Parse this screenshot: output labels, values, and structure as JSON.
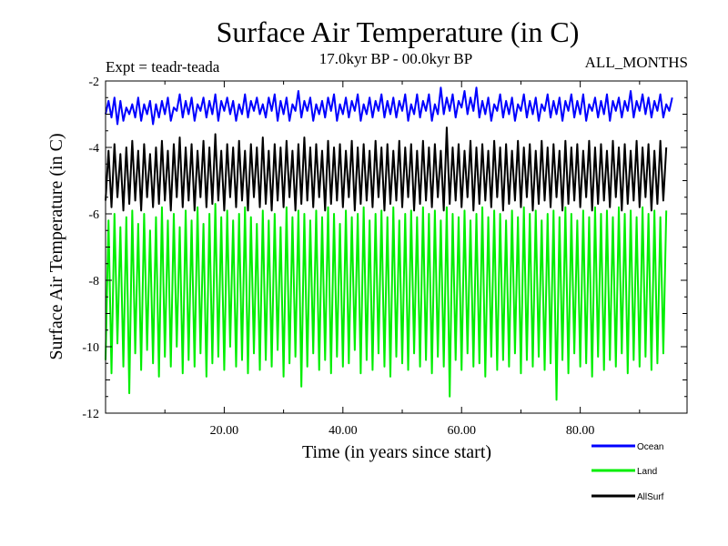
{
  "chart_data": {
    "type": "line",
    "title": "Surface Air Temperature (in C)",
    "subtitle_left": "Expt = teadr-teada",
    "subtitle_center": "17.0kyr BP - 00.0kyr BP",
    "subtitle_right": "ALL_MONTHS",
    "xlabel": "Time (in years since start)",
    "ylabel": "Surface Air Temperature (in C)",
    "xlim": [
      0,
      98
    ],
    "ylim": [
      -12,
      -2
    ],
    "x_ticks": [
      20,
      40,
      60,
      80
    ],
    "x_tick_labels": [
      "20.00",
      "40.00",
      "60.00",
      "80.00"
    ],
    "y_ticks": [
      -12,
      -10,
      -8,
      -6,
      -4,
      -2
    ],
    "y_tick_labels": [
      "-12",
      "-10",
      "-8",
      "-6",
      "-4",
      "-2"
    ],
    "samples_per_year": 2,
    "series": [
      {
        "name": "Ocean",
        "color": "#0000ff",
        "values": [
          -3.0,
          -2.6,
          -3.1,
          -2.5,
          -3.3,
          -2.6,
          -3.2,
          -2.8,
          -3.0,
          -2.7,
          -3.1,
          -2.5,
          -3.2,
          -2.7,
          -3.0,
          -2.6,
          -3.3,
          -2.7,
          -3.1,
          -2.6,
          -3.0,
          -2.5,
          -3.2,
          -2.8,
          -2.9,
          -2.4,
          -3.1,
          -2.6,
          -3.0,
          -2.5,
          -3.2,
          -2.7,
          -2.9,
          -2.5,
          -3.1,
          -2.6,
          -3.0,
          -2.4,
          -3.2,
          -2.6,
          -2.9,
          -2.5,
          -3.0,
          -2.6,
          -3.2,
          -2.7,
          -3.0,
          -2.4,
          -3.1,
          -2.6,
          -2.9,
          -2.5,
          -3.0,
          -2.7,
          -3.1,
          -2.5,
          -2.9,
          -2.4,
          -3.2,
          -2.6,
          -3.0,
          -2.5,
          -3.2,
          -2.7,
          -2.9,
          -2.3,
          -3.1,
          -2.6,
          -2.9,
          -2.5,
          -3.2,
          -2.7,
          -3.0,
          -2.6,
          -3.1,
          -2.5,
          -2.9,
          -2.4,
          -3.2,
          -2.7,
          -3.0,
          -2.5,
          -3.1,
          -2.6,
          -2.9,
          -2.4,
          -3.2,
          -2.7,
          -3.0,
          -2.5,
          -3.1,
          -2.6,
          -2.9,
          -2.4,
          -3.1,
          -2.6,
          -3.0,
          -2.5,
          -3.1,
          -2.6,
          -2.9,
          -2.4,
          -3.2,
          -2.7,
          -3.0,
          -2.4,
          -3.1,
          -2.6,
          -2.9,
          -2.4,
          -3.2,
          -2.7,
          -3.0,
          -2.2,
          -3.0,
          -2.5,
          -2.9,
          -2.4,
          -3.1,
          -2.6,
          -2.8,
          -2.3,
          -3.0,
          -2.5,
          -2.9,
          -2.2,
          -3.1,
          -2.6,
          -3.0,
          -2.5,
          -3.2,
          -2.7,
          -2.9,
          -2.4,
          -3.1,
          -2.6,
          -3.0,
          -2.5,
          -3.2,
          -2.7,
          -2.9,
          -2.4,
          -3.1,
          -2.6,
          -3.0,
          -2.5,
          -3.2,
          -2.7,
          -2.9,
          -2.4,
          -3.1,
          -2.6,
          -3.0,
          -2.5,
          -3.2,
          -2.6,
          -2.9,
          -2.4,
          -3.1,
          -2.6,
          -3.0,
          -2.4,
          -3.2,
          -2.7,
          -2.9,
          -2.5,
          -3.1,
          -2.6,
          -3.0,
          -2.4,
          -3.2,
          -2.6,
          -2.9,
          -2.5,
          -3.1,
          -2.6,
          -2.9,
          -2.3,
          -3.1,
          -2.6,
          -2.9,
          -2.4,
          -3.0,
          -2.5,
          -3.1,
          -2.6,
          -2.9,
          -2.4,
          -3.1,
          -2.7,
          -2.9,
          -2.5
        ]
      },
      {
        "name": "Land",
        "color": "#00ee00",
        "values": [
          -10.4,
          -6.2,
          -10.8,
          -6.0,
          -9.9,
          -6.4,
          -10.6,
          -6.1,
          -11.4,
          -5.9,
          -10.2,
          -6.3,
          -10.7,
          -6.0,
          -10.1,
          -6.5,
          -10.5,
          -6.1,
          -10.9,
          -5.8,
          -10.3,
          -6.2,
          -10.6,
          -6.0,
          -10.0,
          -6.4,
          -10.8,
          -5.9,
          -10.4,
          -6.2,
          -10.6,
          -5.8,
          -10.2,
          -6.3,
          -10.9,
          -6.0,
          -10.5,
          -5.7,
          -10.3,
          -6.1,
          -10.7,
          -5.9,
          -10.0,
          -6.2,
          -10.6,
          -6.0,
          -10.4,
          -5.8,
          -10.8,
          -6.1,
          -10.2,
          -6.3,
          -10.7,
          -5.9,
          -10.4,
          -6.2,
          -10.6,
          -6.0,
          -10.1,
          -6.4,
          -10.9,
          -5.8,
          -10.5,
          -6.1,
          -10.3,
          -5.9,
          -11.2,
          -6.0,
          -10.6,
          -6.2,
          -10.2,
          -5.9,
          -10.7,
          -6.1,
          -10.4,
          -5.8,
          -10.8,
          -6.0,
          -10.3,
          -6.3,
          -10.6,
          -5.9,
          -10.5,
          -6.1,
          -10.1,
          -6.0,
          -10.8,
          -5.8,
          -10.4,
          -6.2,
          -10.7,
          -6.0,
          -10.2,
          -5.9,
          -10.6,
          -6.1,
          -10.9,
          -5.8,
          -10.3,
          -6.2,
          -10.5,
          -6.0,
          -10.7,
          -5.9,
          -10.2,
          -6.1,
          -10.6,
          -5.8,
          -10.4,
          -6.0,
          -10.8,
          -5.9,
          -10.3,
          -6.2,
          -10.6,
          -5.8,
          -11.5,
          -6.0,
          -10.4,
          -6.1,
          -10.7,
          -5.9,
          -10.2,
          -6.2,
          -10.6,
          -6.0,
          -10.5,
          -5.8,
          -10.9,
          -6.1,
          -10.3,
          -5.9,
          -10.7,
          -6.0,
          -10.4,
          -6.2,
          -10.6,
          -5.9,
          -10.2,
          -6.1,
          -10.8,
          -5.8,
          -10.4,
          -6.0,
          -10.6,
          -5.9,
          -10.3,
          -6.2,
          -10.7,
          -6.0,
          -10.5,
          -5.9,
          -11.6,
          -6.1,
          -10.4,
          -5.8,
          -10.8,
          -6.0,
          -10.2,
          -6.2,
          -10.6,
          -5.9,
          -10.5,
          -6.1,
          -10.9,
          -5.8,
          -10.3,
          -6.0,
          -10.7,
          -5.9,
          -10.4,
          -6.1,
          -10.6,
          -5.8,
          -10.2,
          -6.0,
          -10.8,
          -5.9,
          -10.4,
          -6.1,
          -10.6,
          -5.8,
          -10.3,
          -6.0,
          -10.7,
          -5.9,
          -10.5,
          -6.1,
          -10.2,
          -5.9
        ]
      },
      {
        "name": "AllSurf",
        "color": "#000000",
        "values": [
          -5.6,
          -4.1,
          -5.8,
          -3.9,
          -5.5,
          -4.2,
          -5.9,
          -4.0,
          -5.7,
          -3.8,
          -5.6,
          -4.1,
          -5.9,
          -3.9,
          -5.5,
          -4.2,
          -5.8,
          -4.0,
          -5.7,
          -3.8,
          -5.6,
          -4.1,
          -5.9,
          -3.9,
          -5.5,
          -3.7,
          -5.8,
          -4.0,
          -5.6,
          -3.9,
          -5.9,
          -4.1,
          -5.5,
          -3.8,
          -5.8,
          -4.0,
          -5.7,
          -3.6,
          -5.6,
          -4.1,
          -5.9,
          -3.9,
          -5.5,
          -4.0,
          -5.8,
          -3.8,
          -5.6,
          -4.1,
          -5.9,
          -3.9,
          -5.5,
          -4.0,
          -5.8,
          -3.7,
          -5.7,
          -4.1,
          -5.9,
          -3.9,
          -5.6,
          -4.0,
          -5.8,
          -3.8,
          -5.5,
          -4.1,
          -5.9,
          -3.9,
          -5.7,
          -3.7,
          -5.6,
          -4.0,
          -5.8,
          -3.9,
          -5.5,
          -4.1,
          -5.9,
          -3.8,
          -5.7,
          -4.0,
          -5.6,
          -3.9,
          -5.8,
          -4.1,
          -5.5,
          -3.8,
          -5.9,
          -4.0,
          -5.7,
          -3.9,
          -5.6,
          -4.1,
          -5.8,
          -3.8,
          -5.5,
          -4.0,
          -5.9,
          -3.9,
          -5.7,
          -4.1,
          -5.6,
          -3.8,
          -5.8,
          -4.0,
          -5.5,
          -3.9,
          -5.9,
          -4.1,
          -5.7,
          -3.8,
          -5.6,
          -4.0,
          -5.8,
          -3.9,
          -5.5,
          -4.1,
          -5.9,
          -3.4,
          -5.7,
          -4.0,
          -5.6,
          -3.9,
          -5.8,
          -4.1,
          -5.5,
          -3.8,
          -5.9,
          -4.0,
          -5.7,
          -3.9,
          -5.6,
          -4.1,
          -5.8,
          -3.8,
          -5.5,
          -4.0,
          -5.9,
          -3.9,
          -5.7,
          -4.1,
          -5.6,
          -3.8,
          -5.8,
          -4.0,
          -5.5,
          -3.9,
          -5.9,
          -4.1,
          -5.7,
          -3.8,
          -5.6,
          -4.0,
          -5.8,
          -3.9,
          -5.5,
          -4.1,
          -5.9,
          -3.8,
          -5.7,
          -4.0,
          -5.6,
          -3.9,
          -5.8,
          -4.1,
          -5.5,
          -3.8,
          -5.9,
          -4.0,
          -5.7,
          -3.9,
          -5.6,
          -4.1,
          -5.8,
          -3.8,
          -5.5,
          -4.0,
          -5.9,
          -3.9,
          -5.7,
          -4.1,
          -5.6,
          -3.8,
          -5.8,
          -4.0,
          -5.5,
          -3.9,
          -5.9,
          -4.1,
          -5.7,
          -3.8,
          -5.6,
          -4.0
        ]
      }
    ]
  }
}
